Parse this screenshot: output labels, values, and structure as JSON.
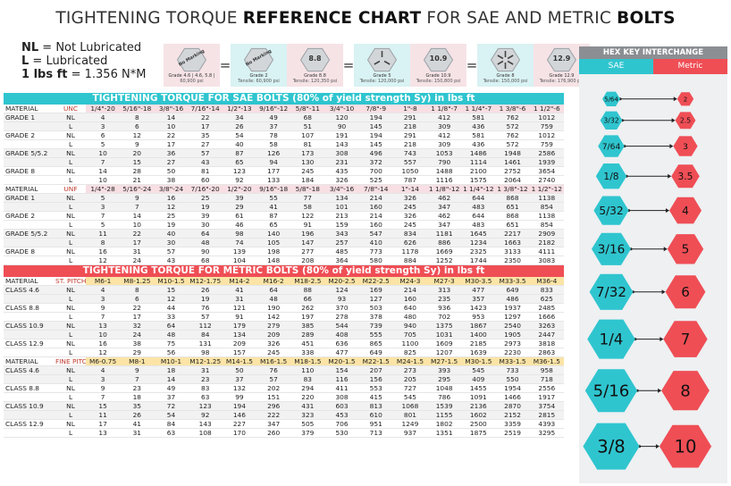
{
  "title": {
    "prefix": "TIGHTENING TORQUE",
    "bold1": "REFERENCE CHART",
    "middle": "FOR SAE AND METRIC",
    "bold2": "BOLTS"
  },
  "legend": {
    "nl_key": "NL",
    "nl_text": " = Not Lubricated",
    "l_key": "L",
    "l_text": " = Lubricated",
    "conv_key": "1 lbs ft",
    "conv_text": " = 1.356 N*M"
  },
  "grades": [
    {
      "mark": "No Marking",
      "name": "Grade 4.6 | 4.6, 5.8 |",
      "sub": "60,900 psi",
      "bg": "pink",
      "type": "plain"
    },
    {
      "mark": "No Marking",
      "name": "Grade 2",
      "sub": "Tensile: 60,900 psi",
      "bg": "blue",
      "type": "plain"
    },
    {
      "mark": "8.8",
      "name": "Grade 8.8",
      "sub": "Tensile: 120,350 psi",
      "bg": "pink",
      "type": "text"
    },
    {
      "mark": "",
      "name": "Grade 5",
      "sub": "Tensile: 120,000 psi",
      "bg": "blue",
      "type": "lines3"
    },
    {
      "mark": "10.9",
      "name": "Grade 10.9",
      "sub": "Tensile: 150,800 psi",
      "bg": "pink",
      "type": "text"
    },
    {
      "mark": "",
      "name": "Grade 8",
      "sub": "Tensile: 150,000 psi",
      "bg": "blue",
      "type": "lines6"
    },
    {
      "mark": "12.9",
      "name": "Grade 12.9",
      "sub": "Tensile: 176,900 psi",
      "bg": "pink",
      "type": "text"
    }
  ],
  "eq_sign": "=",
  "sae": {
    "band": "TIGHTENING TORQUE FOR SAE BOLTS (80% of yield strength Sy) in lbs ft",
    "unc_header": [
      "MATERIAL",
      "UNC",
      "1/4\"-20",
      "5/16\"-18",
      "3/8\"-16",
      "7/16\"-14",
      "1/2\"-13",
      "9/16\"-12",
      "5/8\"-11",
      "3/4\"-10",
      "7/8\"-9",
      "1\"-8",
      "1 1/8\"-7",
      "1 1/4\"-7",
      "1 3/8\"-6",
      "1 1/2\"-6"
    ],
    "unc_rows": [
      [
        "GRADE 1",
        "NL",
        "4",
        "8",
        "14",
        "22",
        "34",
        "49",
        "68",
        "120",
        "194",
        "291",
        "412",
        "581",
        "762",
        "1012"
      ],
      [
        "",
        "L",
        "3",
        "6",
        "10",
        "17",
        "26",
        "37",
        "51",
        "90",
        "145",
        "218",
        "309",
        "436",
        "572",
        "759"
      ],
      [
        "GRADE 2",
        "NL",
        "6",
        "12",
        "22",
        "35",
        "54",
        "78",
        "107",
        "191",
        "194",
        "291",
        "412",
        "581",
        "762",
        "1012"
      ],
      [
        "",
        "L",
        "5",
        "9",
        "17",
        "27",
        "40",
        "58",
        "81",
        "143",
        "145",
        "218",
        "309",
        "436",
        "572",
        "759"
      ],
      [
        "GRADE 5/5.2",
        "NL",
        "10",
        "20",
        "36",
        "57",
        "87",
        "126",
        "173",
        "308",
        "496",
        "743",
        "1053",
        "1486",
        "1948",
        "2586"
      ],
      [
        "",
        "L",
        "7",
        "15",
        "27",
        "43",
        "65",
        "94",
        "130",
        "231",
        "372",
        "557",
        "790",
        "1114",
        "1461",
        "1939"
      ],
      [
        "GRADE 8",
        "NL",
        "14",
        "28",
        "50",
        "81",
        "123",
        "177",
        "245",
        "435",
        "700",
        "1050",
        "1488",
        "2100",
        "2752",
        "3654"
      ],
      [
        "",
        "L",
        "10",
        "21",
        "38",
        "60",
        "92",
        "133",
        "184",
        "326",
        "525",
        "787",
        "1116",
        "1575",
        "2064",
        "2740"
      ]
    ],
    "unf_header": [
      "MATERIAL",
      "UNF",
      "1/4\"-28",
      "5/16\"-24",
      "3/8\"-24",
      "7/16\"-20",
      "1/2\"-20",
      "9/16\"-18",
      "5/8\"-18",
      "3/4\"-16",
      "7/8\"-14",
      "1\"-14",
      "1 1/8\"-12",
      "1 1/4\"-12",
      "1 3/8\"-12",
      "1 1/2\"-12"
    ],
    "unf_rows": [
      [
        "GRADE 1",
        "NL",
        "5",
        "9",
        "16",
        "25",
        "39",
        "55",
        "77",
        "134",
        "214",
        "326",
        "462",
        "644",
        "868",
        "1138"
      ],
      [
        "",
        "L",
        "3",
        "7",
        "12",
        "19",
        "29",
        "41",
        "58",
        "101",
        "160",
        "245",
        "347",
        "483",
        "651",
        "854"
      ],
      [
        "GRADE 2",
        "NL",
        "7",
        "14",
        "25",
        "39",
        "61",
        "87",
        "122",
        "213",
        "214",
        "326",
        "462",
        "644",
        "868",
        "1138"
      ],
      [
        "",
        "L",
        "5",
        "10",
        "19",
        "30",
        "46",
        "65",
        "91",
        "159",
        "160",
        "245",
        "347",
        "483",
        "651",
        "854"
      ],
      [
        "GRADE 5/5.2",
        "NL",
        "11",
        "22",
        "40",
        "64",
        "98",
        "140",
        "196",
        "343",
        "547",
        "834",
        "1181",
        "1645",
        "2217",
        "2909"
      ],
      [
        "",
        "L",
        "8",
        "17",
        "30",
        "48",
        "74",
        "105",
        "147",
        "257",
        "410",
        "626",
        "886",
        "1234",
        "1663",
        "2182"
      ],
      [
        "GRADE 8",
        "NL",
        "16",
        "31",
        "57",
        "90",
        "139",
        "198",
        "277",
        "485",
        "773",
        "1178",
        "1669",
        "2325",
        "3133",
        "4111"
      ],
      [
        "",
        "L",
        "12",
        "24",
        "43",
        "68",
        "104",
        "148",
        "208",
        "364",
        "580",
        "884",
        "1252",
        "1744",
        "2350",
        "3083"
      ]
    ]
  },
  "metric": {
    "band": "TIGHTENING TORQUE FOR METRIC BOLTS (80% of yield strength Sy) in lbs ft",
    "st_header": [
      "MATERIAL",
      "ST. PITCH",
      "M6-1",
      "M8-1.25",
      "M10-1.5",
      "M12-1.75",
      "M14-2",
      "M16-2",
      "M18-2.5",
      "M20-2.5",
      "M22-2.5",
      "M24-3",
      "M27-3",
      "M30-3.5",
      "M33-3.5",
      "M36-4"
    ],
    "st_rows": [
      [
        "CLASS 4.6",
        "NL",
        "4",
        "8",
        "15",
        "26",
        "41",
        "64",
        "88",
        "124",
        "169",
        "214",
        "313",
        "477",
        "649",
        "833"
      ],
      [
        "",
        "L",
        "3",
        "6",
        "12",
        "19",
        "31",
        "48",
        "66",
        "93",
        "127",
        "160",
        "235",
        "357",
        "486",
        "625"
      ],
      [
        "CLASS 8.8",
        "NL",
        "9",
        "22",
        "44",
        "76",
        "121",
        "190",
        "262",
        "370",
        "503",
        "640",
        "936",
        "1423",
        "1937",
        "2485"
      ],
      [
        "",
        "L",
        "7",
        "17",
        "33",
        "57",
        "91",
        "142",
        "197",
        "278",
        "378",
        "480",
        "702",
        "953",
        "1297",
        "1666"
      ],
      [
        "CLASS 10.9",
        "NL",
        "13",
        "32",
        "64",
        "112",
        "179",
        "279",
        "385",
        "544",
        "739",
        "940",
        "1375",
        "1867",
        "2540",
        "3263"
      ],
      [
        "",
        "L",
        "10",
        "24",
        "48",
        "84",
        "134",
        "209",
        "289",
        "408",
        "555",
        "705",
        "1031",
        "1400",
        "1905",
        "2447"
      ],
      [
        "CLASS 12.9",
        "NL",
        "16",
        "38",
        "75",
        "131",
        "209",
        "326",
        "451",
        "636",
        "865",
        "1100",
        "1609",
        "2185",
        "2973",
        "3818"
      ],
      [
        "",
        "L",
        "12",
        "29",
        "56",
        "98",
        "157",
        "245",
        "338",
        "477",
        "649",
        "825",
        "1207",
        "1639",
        "2230",
        "2863"
      ]
    ],
    "fine_header": [
      "MATERIAL",
      "FINE PITCH",
      "M6-0.75",
      "M8-1",
      "M10-1",
      "M12-1.25",
      "M14-1.5",
      "M16-1.5",
      "M18-1.5",
      "M20-1.5",
      "M22-1.5",
      "M24-1.5",
      "M27-1.5",
      "M30-1.5",
      "M33-1.5",
      "M36-1.5"
    ],
    "fine_rows": [
      [
        "CLASS 4.6",
        "NL",
        "4",
        "9",
        "18",
        "31",
        "50",
        "76",
        "110",
        "154",
        "207",
        "273",
        "393",
        "545",
        "733",
        "958"
      ],
      [
        "",
        "L",
        "3",
        "7",
        "14",
        "23",
        "37",
        "57",
        "83",
        "116",
        "156",
        "205",
        "295",
        "409",
        "550",
        "718"
      ],
      [
        "CLASS 8.8",
        "NL",
        "9",
        "23",
        "49",
        "83",
        "132",
        "202",
        "294",
        "411",
        "553",
        "727",
        "1048",
        "1455",
        "1954",
        "2556"
      ],
      [
        "",
        "L",
        "7",
        "18",
        "37",
        "63",
        "99",
        "151",
        "220",
        "308",
        "415",
        "545",
        "786",
        "1091",
        "1466",
        "1917"
      ],
      [
        "CLASS 10.9",
        "NL",
        "15",
        "35",
        "72",
        "123",
        "194",
        "296",
        "431",
        "603",
        "813",
        "1068",
        "1539",
        "2136",
        "2870",
        "3754"
      ],
      [
        "",
        "L",
        "11",
        "26",
        "54",
        "92",
        "146",
        "222",
        "323",
        "453",
        "610",
        "801",
        "1155",
        "1602",
        "2152",
        "2815"
      ],
      [
        "CLASS 12.9",
        "NL",
        "17",
        "41",
        "84",
        "143",
        "227",
        "347",
        "505",
        "706",
        "951",
        "1249",
        "1802",
        "2500",
        "3359",
        "4393"
      ],
      [
        "",
        "L",
        "13",
        "31",
        "63",
        "108",
        "170",
        "260",
        "379",
        "530",
        "713",
        "937",
        "1351",
        "1875",
        "2519",
        "3295"
      ]
    ]
  },
  "hexkey": {
    "title": "HEX KEY INTERCHANGE",
    "sae_label": "SAE",
    "metric_label": "Metric",
    "sae_color": "#2fc5cf",
    "metric_color": "#ef4e55",
    "pairs": [
      {
        "sae": "5/64",
        "metric": "2"
      },
      {
        "sae": "3/32",
        "metric": "2.5"
      },
      {
        "sae": "7/64",
        "metric": "3"
      },
      {
        "sae": "1/8",
        "metric": "3.5"
      },
      {
        "sae": "5/32",
        "metric": "4"
      },
      {
        "sae": "3/16",
        "metric": "5"
      },
      {
        "sae": "7/32",
        "metric": "6"
      },
      {
        "sae": "1/4",
        "metric": "7"
      },
      {
        "sae": "5/16",
        "metric": "8"
      },
      {
        "sae": "3/8",
        "metric": "10"
      }
    ]
  }
}
